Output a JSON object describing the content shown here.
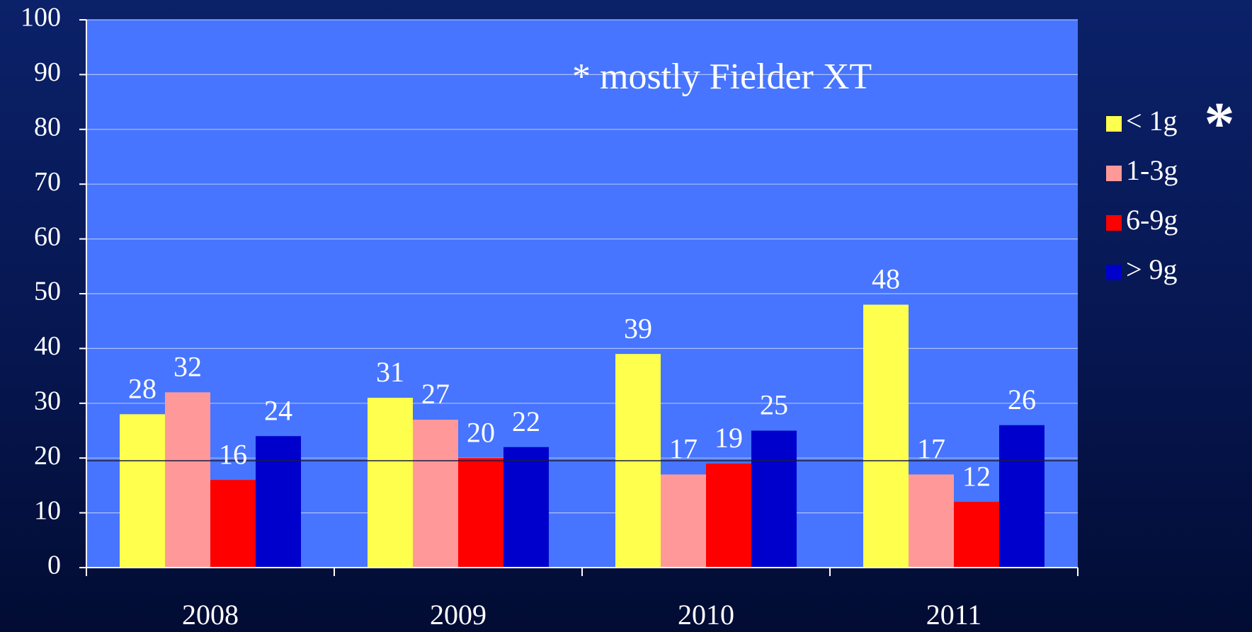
{
  "chart_data": {
    "type": "bar",
    "categories": [
      "2008",
      "2009",
      "2010",
      "2011"
    ],
    "series": [
      {
        "name": "< 1g",
        "color": "#ffff4d",
        "values": [
          28,
          31,
          39,
          48
        ]
      },
      {
        "name": "1-3g",
        "color": "#ff9999",
        "values": [
          32,
          27,
          17,
          17
        ]
      },
      {
        "name": "6-9g",
        "color": "#ff0000",
        "values": [
          16,
          20,
          19,
          12
        ]
      },
      {
        "name": "> 9g",
        "color": "#0000cc",
        "values": [
          24,
          22,
          25,
          26
        ]
      }
    ],
    "ylim": [
      0,
      100
    ],
    "yticks": [
      0,
      10,
      20,
      30,
      40,
      50,
      60,
      70,
      80,
      90,
      100
    ],
    "grid": true,
    "legend": "right",
    "annotations": [
      "* mostly Fielder XT",
      "*"
    ]
  }
}
